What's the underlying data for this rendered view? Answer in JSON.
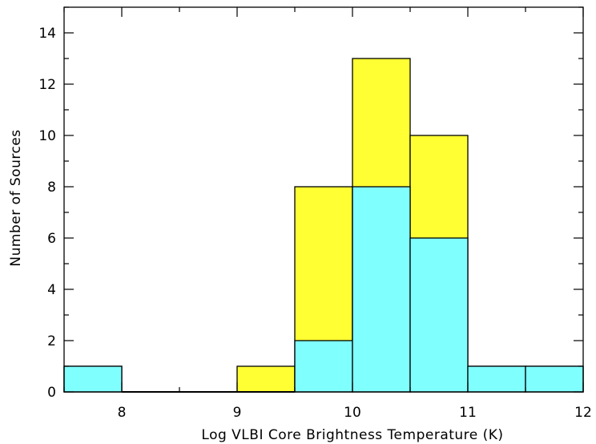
{
  "chart_data": {
    "type": "bar",
    "subtype": "stacked-histogram",
    "title": "",
    "xlabel": "Log VLBI Core Brightness Temperature (K)",
    "ylabel": "Number of Sources",
    "xlim": [
      7.5,
      12
    ],
    "ylim": [
      0,
      15
    ],
    "x_major_ticks": [
      8,
      9,
      10,
      11,
      12
    ],
    "x_minor_step": 0.5,
    "y_major_ticks": [
      0,
      2,
      4,
      6,
      8,
      10,
      12,
      14
    ],
    "y_minor_step": 1,
    "grid": false,
    "legend": "none",
    "bin_edges": [
      7.5,
      8.0,
      8.5,
      9.0,
      9.5,
      10.0,
      10.5,
      11.0,
      11.5,
      12.0
    ],
    "series": [
      {
        "color": "#80FFFF",
        "values": [
          1,
          0,
          0,
          0,
          2,
          8,
          6,
          1,
          1
        ]
      },
      {
        "color": "#FFFF33",
        "values": [
          1,
          0,
          0,
          1,
          8,
          13,
          10,
          1,
          1
        ]
      }
    ]
  }
}
